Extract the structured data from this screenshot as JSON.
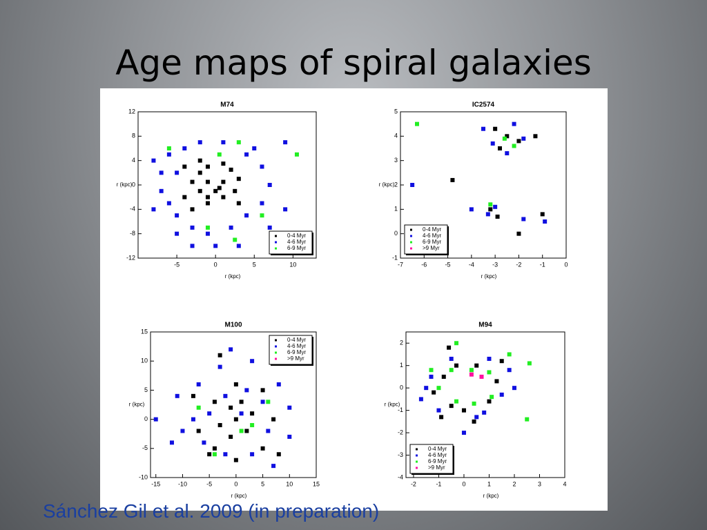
{
  "slide": {
    "title": "Age maps of spiral galaxies",
    "caption": "Sánchez Gil et al. 2009 (in preparation)"
  },
  "chart_data": [
    {
      "type": "scatter",
      "title": "M74",
      "xlabel": "r (kpc)",
      "ylabel": "r (kpc)",
      "xlim": [
        -10,
        13
      ],
      "ylim": [
        -12,
        12
      ],
      "xticks": [
        -5,
        0,
        5,
        10
      ],
      "yticks": [
        -12,
        -8,
        -4,
        0,
        4,
        8,
        12
      ],
      "legend": "lower right",
      "series": [
        {
          "name": "0-4 Myr",
          "color": "#000000",
          "x": [
            -2,
            -1,
            1,
            2,
            3,
            2.5,
            1,
            -1,
            -2,
            -3,
            -4,
            -3,
            -1,
            0,
            1,
            -1,
            0.5,
            3,
            -2,
            -4
          ],
          "y": [
            2,
            3,
            3.5,
            2.5,
            1,
            -1,
            -2,
            -2,
            -1,
            0.5,
            -2,
            -4,
            -3,
            -1,
            0.5,
            0.5,
            -0.5,
            -3,
            4,
            3
          ]
        },
        {
          "name": "4-6 Myr",
          "color": "#1010e0",
          "x": [
            -7,
            -6,
            -4,
            -2,
            1,
            4,
            6,
            7,
            6,
            4,
            2,
            -1,
            -3,
            -5,
            -6,
            -7,
            -8,
            -5,
            -5,
            0,
            9,
            9,
            3,
            -3,
            7,
            5,
            -8
          ],
          "y": [
            2,
            5,
            6,
            7,
            7,
            5,
            3,
            0,
            -3,
            -5,
            -7,
            -8,
            -7,
            -5,
            -3,
            -1,
            4,
            2,
            -8,
            -10,
            -4,
            7,
            -10,
            -10,
            -7,
            6,
            -4
          ]
        },
        {
          "name": "6-9 Myr",
          "color": "#22ee22",
          "x": [
            2.5,
            -1,
            -6,
            0.5,
            6,
            10.5,
            3
          ],
          "y": [
            -9,
            -7,
            6,
            5,
            -5,
            5,
            7
          ]
        }
      ]
    },
    {
      "type": "scatter",
      "title": "IC2574",
      "xlabel": "r (kpc)",
      "ylabel": "r (kpc)",
      "xlim": [
        -7,
        0
      ],
      "ylim": [
        -1,
        5
      ],
      "xticks": [
        -7,
        -6,
        -5,
        -4,
        -3,
        -2,
        -1,
        0
      ],
      "yticks": [
        -1,
        0,
        1,
        2,
        3,
        4,
        5
      ],
      "legend": "lower left",
      "series": [
        {
          "name": "0-4 Myr",
          "color": "#000000",
          "x": [
            -3,
            -2.5,
            -2,
            -2.8,
            -3.2,
            -2.9,
            -2,
            -4.8,
            -1,
            -1.3
          ],
          "y": [
            4.3,
            4,
            3.8,
            3.5,
            1,
            0.7,
            0,
            2.2,
            0.8,
            4
          ]
        },
        {
          "name": "4-6 Myr",
          "color": "#1010e0",
          "x": [
            -3.5,
            -2.2,
            -1.8,
            -3.1,
            -2.5,
            -3,
            -3.3,
            -1.8,
            -0.9,
            -6.5,
            -4
          ],
          "y": [
            4.3,
            4.5,
            3.9,
            3.7,
            3.3,
            1.1,
            0.8,
            0.6,
            0.5,
            2,
            1
          ]
        },
        {
          "name": "6-9 Myr",
          "color": "#22ee22",
          "x": [
            -2.6,
            -6.3,
            -2.2,
            -3.2
          ],
          "y": [
            3.9,
            4.5,
            3.6,
            1.2
          ]
        },
        {
          "name": ">9 Myr",
          "color": "#ff10a0",
          "x": [],
          "y": []
        }
      ]
    },
    {
      "type": "scatter",
      "title": "M100",
      "xlabel": "r (kpc)",
      "ylabel": "r (kpc)",
      "xlim": [
        -16,
        15
      ],
      "ylim": [
        -10,
        15
      ],
      "xticks": [
        -15,
        -10,
        -5,
        0,
        5,
        10,
        15
      ],
      "yticks": [
        -10,
        -5,
        0,
        5,
        10,
        15
      ],
      "legend": "upper right",
      "series": [
        {
          "name": "0-4 Myr",
          "color": "#000000",
          "x": [
            -1,
            1,
            3,
            2,
            -1,
            -3,
            -4,
            0,
            5,
            7,
            5,
            0,
            -5,
            -7,
            -8,
            -4,
            -3,
            8,
            0
          ],
          "y": [
            2,
            3,
            1,
            -2,
            -3,
            -1,
            3,
            6,
            5,
            0,
            -5,
            -7,
            -6,
            -2,
            4,
            -5,
            11,
            -6,
            0
          ]
        },
        {
          "name": "4-6 Myr",
          "color": "#1010e0",
          "x": [
            -2,
            2,
            5,
            6,
            3,
            -2,
            -6,
            -8,
            -7,
            -3,
            3,
            8,
            10,
            10,
            7,
            -10,
            -12,
            -11,
            -15,
            1,
            -5,
            -1
          ],
          "y": [
            4,
            5,
            3,
            -2,
            -6,
            -6,
            -4,
            0,
            6,
            9,
            10,
            6,
            2,
            -3,
            -8,
            -2,
            -4,
            4,
            0,
            1,
            1,
            12
          ]
        },
        {
          "name": "6-9 Myr",
          "color": "#22ee22",
          "x": [
            3,
            -4,
            1,
            6,
            -7
          ],
          "y": [
            -1,
            -6,
            -2,
            3,
            2
          ]
        },
        {
          "name": ">9 Myr",
          "color": "#ff10a0",
          "x": [],
          "y": []
        }
      ]
    },
    {
      "type": "scatter",
      "title": "M94",
      "xlabel": "r (kpc)",
      "ylabel": "r (kpc)",
      "xlim": [
        -2.3,
        4
      ],
      "ylim": [
        -4,
        2.5
      ],
      "xticks": [
        -2,
        -1,
        0,
        1,
        2,
        3,
        4
      ],
      "yticks": [
        -4,
        -3,
        -2,
        -1,
        0,
        1,
        2
      ],
      "legend": "lower left",
      "series": [
        {
          "name": "0-4 Myr",
          "color": "#000000",
          "x": [
            -0.8,
            -0.5,
            0,
            1,
            1.3,
            0.5,
            -0.3,
            -1.2,
            -0.9,
            1.5,
            -0.6,
            0.4
          ],
          "y": [
            0.5,
            -0.8,
            -1,
            -0.6,
            0.3,
            1,
            1,
            -0.2,
            -1.3,
            1.2,
            1.8,
            -1.5
          ]
        },
        {
          "name": "4-6 Myr",
          "color": "#1010e0",
          "x": [
            -1.3,
            -1,
            0.5,
            1.5,
            1.8,
            1,
            -0.5,
            -1.5,
            0,
            2,
            -1.7,
            0.8
          ],
          "y": [
            0.5,
            -1,
            -1.3,
            -0.3,
            0.8,
            1.3,
            1.3,
            0,
            -2,
            0,
            -0.5,
            -1.1
          ]
        },
        {
          "name": "6-9 Myr",
          "color": "#22ee22",
          "x": [
            -1,
            -0.5,
            0.3,
            1,
            1.1,
            0.4,
            -0.3,
            2.6,
            -0.3,
            2.5,
            1.8,
            -1.3
          ],
          "y": [
            0,
            0.8,
            0.8,
            0.7,
            -0.4,
            -0.7,
            -0.6,
            1.1,
            2,
            -1.4,
            1.5,
            0.8
          ]
        },
        {
          "name": ">9 Myr",
          "color": "#ff10a0",
          "x": [
            0.3,
            0.7
          ],
          "y": [
            0.6,
            0.5
          ]
        }
      ]
    }
  ]
}
